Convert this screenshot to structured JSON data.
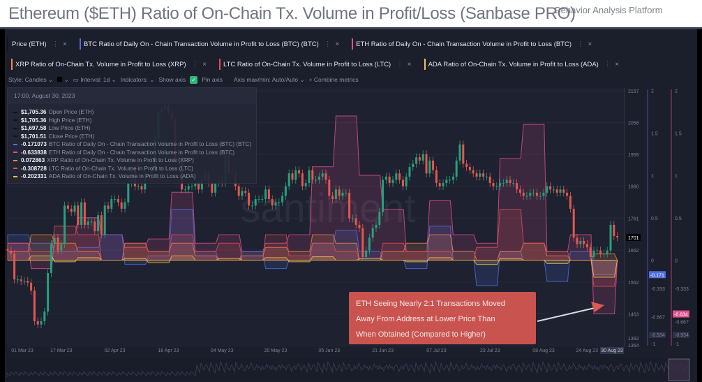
{
  "header": {
    "title": "Ethereum ($ETH) Ratio of On-Chain Tx. Volume in Profit/Loss (Sanbase PRO)",
    "subtitle": "Behavior Analysis Platform"
  },
  "metrics_tabs": [
    {
      "label": "Price (ETH)",
      "color": "#1b1e2b"
    },
    {
      "label": "BTC Ratio of Daily On - Chain Transaction Volume in Profit to Loss (BTC) (BTC)",
      "color": "#4f6fe0"
    },
    {
      "label": "ETH Ratio of Daily On - Chain Transaction Volume in Profit to Loss (BTC)",
      "color": "#e0528a"
    },
    {
      "label": "XRP Ratio of On-Chain Tx. Volume in Profit to Loss (XRP)",
      "color": "#f08a4b"
    },
    {
      "label": "LTC Ratio of On-Chain Tx. Volume in Profit to Loss (LTC)",
      "color": "#e0505a"
    },
    {
      "label": "ADA Ratio of On-Chain Tx. Volume in Profit to Loss (ADA)",
      "color": "#f2c14e"
    }
  ],
  "toolbar": {
    "style": "Style: Candles",
    "interval": "Interval: 1d",
    "indicators": "Indicators:",
    "show_axis": "Show axis",
    "show_axis_checked": true,
    "pin_axis": "Pin axis",
    "axis_maxmin": "Axis max/min: Auto/Auto",
    "combine": "+ Combine metrics"
  },
  "tooltip": {
    "date": "17:00, August 30, 2023",
    "rows": [
      {
        "value": "$1,705.36",
        "label": "Open Price (ETH)",
        "color": "#111318"
      },
      {
        "value": "$1,705.36",
        "label": "High Price (ETH)",
        "color": "#111318"
      },
      {
        "value": "$1,697.58",
        "label": "Low Price (ETH)",
        "color": "#111318"
      },
      {
        "value": "$1,701.51",
        "label": "Close Price (ETH)",
        "color": "#111318"
      },
      {
        "value": "-0.171073",
        "label": "BTC Ratio of Daily On - Chain Transaction Volume in Profit to Loss (BTC) (BTC)",
        "color": "#4f6fe0"
      },
      {
        "value": "-0.633838",
        "label": "ETH Ratio of Daily On - Chain Transaction Volume in Profit to Loss (BTC)",
        "color": "#e0528a"
      },
      {
        "value": "0.072863",
        "label": "XRP Ratio of On-Chain Tx. Volume in Profit to Loss (XRP)",
        "color": "#f08a4b"
      },
      {
        "value": "-0.308728",
        "label": "LTC Ratio of On-Chain Tx. Volume in Profit to Loss (LTC)",
        "color": "#e0505a"
      },
      {
        "value": "-0.202331",
        "label": "ADA Ratio of On-Chain Tx. Volume in Profit to Loss (ADA)",
        "color": "#f2c14e"
      }
    ]
  },
  "annotation": {
    "lines": [
      "ETH Seeing Nearly 2:1 Transactions Moved",
      "Away From Address at Lower Price Than",
      "When Obtained (Compared to Higher)"
    ],
    "color": "#c9544f"
  },
  "watermark": "santiment",
  "chart_data": {
    "type": "candlestick",
    "x_start": "2023-03-01",
    "x_end": "2023-08-30",
    "x_tick_labels": [
      "01 Mar 23",
      "17 Mar 23",
      "02 Apr 23",
      "18 Apr 23",
      "04 May 23",
      "20 May 23",
      "05 Jun 23",
      "21 Jun 23",
      "07 Jul 23",
      "23 Jul 23",
      "08 Aug 23",
      "24 Aug 23"
    ],
    "x_current_label": "30 Aug 23",
    "price_axis": {
      "ticks": [
        2157,
        2058,
        1959,
        1860,
        1761,
        1662,
        1562,
        1463,
        1382,
        1364
      ],
      "range": [
        1364,
        2157
      ],
      "current": 1701
    },
    "ratio_axes": [
      {
        "name": "BTC",
        "color": "#4f6fe0",
        "ticks": [
          "2",
          "1.5",
          "1",
          "0.5",
          "0",
          "-0.333",
          "-0.667",
          "-0.934",
          "-1"
        ],
        "current": "-0.171",
        "range": [
          -1,
          2
        ]
      },
      {
        "name": "ETH",
        "color": "#e0528a",
        "ticks": [
          "2",
          "1.5",
          "1",
          "0.5",
          "0",
          "-0.333",
          "-0.667",
          "-0.934",
          "-1"
        ],
        "current": "-0.634",
        "range": [
          -1,
          2
        ]
      }
    ],
    "eth_daily_close": [
      1660,
      1650,
      1570,
      1570,
      1565,
      1565,
      1560,
      1535,
      1440,
      1430,
      1440,
      1470,
      1590,
      1680,
      1700,
      1660,
      1680,
      1800,
      1790,
      1780,
      1800,
      1740,
      1810,
      1740,
      1750,
      1750,
      1720,
      1770,
      1710,
      1800,
      1790,
      1820,
      1820,
      1810,
      1790,
      1810,
      1870,
      1910,
      1860,
      1860,
      1850,
      1900,
      1890,
      1920,
      2010,
      2090,
      2100,
      2110,
      2090,
      2070,
      1940,
      1950,
      1850,
      1850,
      1860,
      1860,
      1870,
      1850,
      1880,
      1900,
      1870,
      1840,
      1870,
      1880,
      1870,
      1960,
      1900,
      1900,
      1860,
      1830,
      1845,
      1840,
      1800,
      1800,
      1820,
      1820,
      1820,
      1850,
      1820,
      1800,
      1810,
      1810,
      1830,
      1860,
      1900,
      1880,
      1910,
      1900,
      1860,
      1870,
      1910,
      1880,
      1880,
      1890,
      1900,
      1880,
      1830,
      1820,
      1850,
      1830,
      1840,
      1840,
      1760,
      1760,
      1740,
      1730,
      1640,
      1660,
      1700,
      1730,
      1740,
      1780,
      1880,
      1890,
      1870,
      1880,
      1900,
      1880,
      1860,
      1890,
      1920,
      1930,
      1950,
      1940,
      1960,
      1900,
      1940,
      1910,
      1870,
      1860,
      1870,
      1880,
      1880,
      1890,
      1940,
      1990,
      1930,
      1920,
      1910,
      1900,
      1890,
      1900,
      1890,
      1890,
      1870,
      1860,
      1860,
      1870,
      1870,
      1880,
      1870,
      1870,
      1850,
      1840,
      1830,
      1830,
      1840,
      1840,
      1830,
      1830,
      1840,
      1860,
      1850,
      1850,
      1840,
      1850,
      1840,
      1830,
      1790,
      1700,
      1680,
      1690,
      1680,
      1670,
      1640,
      1660,
      1660,
      1650,
      1650,
      1660,
      1740,
      1705,
      1701
    ],
    "ratio_series_weekly": [
      {
        "name": "ETH",
        "color": "#e0528a",
        "values": [
          0.2,
          -0.1,
          0.3,
          0.5,
          0.3,
          0.15,
          0.25,
          0.8,
          0.2,
          0.3,
          0.1,
          0.2,
          0.3,
          1.1,
          1.7,
          1.0,
          0.6,
          0.1,
          0.7,
          0.3,
          0.2,
          1.2,
          1.6,
          0.1,
          0.3,
          -0.634
        ]
      },
      {
        "name": "BTC",
        "color": "#4f6fe0",
        "values": [
          0.3,
          0.2,
          0.1,
          0.15,
          0.3,
          -0.05,
          0.05,
          0.6,
          0.1,
          0.0,
          0.1,
          -0.1,
          0.0,
          0.2,
          0.35,
          0.1,
          0.0,
          -0.1,
          0.4,
          0.0,
          -0.3,
          0.1,
          0.0,
          -0.25,
          0.1,
          -0.171
        ]
      },
      {
        "name": "XRP",
        "color": "#f08a4b",
        "values": [
          0.1,
          0.3,
          0.2,
          0.1,
          0.0,
          0.2,
          0.1,
          0.2,
          0.05,
          0.0,
          0.05,
          0.15,
          0.1,
          0.3,
          0.2,
          0.0,
          0.1,
          0.2,
          0.3,
          0.1,
          0.0,
          0.1,
          0.2,
          0.05,
          0.0,
          0.073
        ]
      },
      {
        "name": "LTC",
        "color": "#e0505a",
        "values": [
          0.2,
          0.1,
          0.4,
          0.3,
          0.0,
          0.2,
          0.1,
          0.3,
          0.1,
          0.2,
          0.0,
          0.3,
          0.05,
          0.2,
          0.1,
          0.0,
          0.2,
          0.1,
          0.1,
          0.0,
          0.15,
          0.6,
          0.2,
          0.1,
          0.0,
          -0.309
        ]
      },
      {
        "name": "ADA",
        "color": "#f2c14e",
        "values": [
          0.0,
          0.05,
          -0.02,
          0.03,
          0.0,
          0.02,
          -0.03,
          0.05,
          0.0,
          0.02,
          0.0,
          0.03,
          -0.02,
          0.04,
          0.0,
          0.02,
          0.0,
          -0.02,
          0.03,
          0.0,
          -0.05,
          0.02,
          0.0,
          -0.04,
          0.0,
          -0.202
        ]
      }
    ],
    "colors": {
      "up": "#26a17b",
      "down": "#e2584f",
      "background": "#1b1e2b"
    }
  }
}
